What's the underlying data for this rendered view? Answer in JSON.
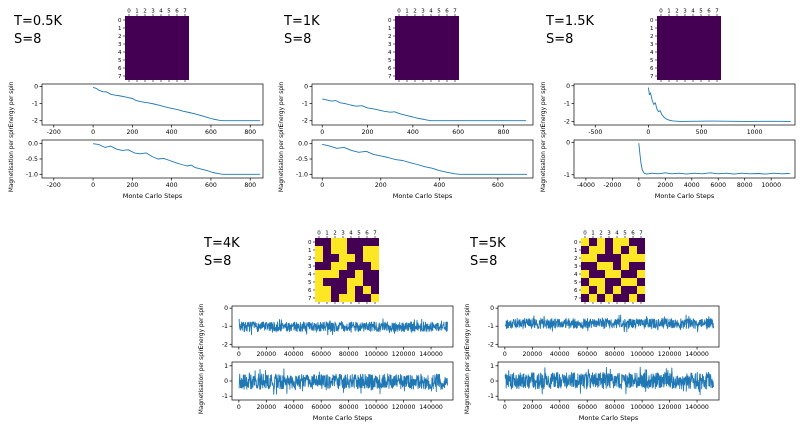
{
  "colors": {
    "line": "#1f77b4",
    "spin_down": "#440154",
    "spin_up": "#fde725",
    "axis": "#000000",
    "background": "#ffffff"
  },
  "panels": [
    {
      "temp_label": "T=0.5K",
      "s_label": "S=8"
    },
    {
      "temp_label": "T=1K",
      "s_label": "S=8"
    },
    {
      "temp_label": "T=1.5K",
      "s_label": "S=8"
    },
    {
      "temp_label": "T=4K",
      "s_label": "S=8"
    },
    {
      "temp_label": "T=5K",
      "s_label": "S=8"
    }
  ],
  "chart_data": [
    {
      "id": "t0.5_energy",
      "panel": "T=0.5K",
      "type": "line",
      "ylabel": "Energy per spin",
      "xlim": [
        -260,
        865
      ],
      "ylim": [
        -2.25,
        0.15
      ],
      "xticks": [
        -200,
        0,
        200,
        400,
        600,
        800
      ],
      "yticks": [
        0,
        -1,
        -2
      ],
      "points": [
        [
          0,
          -0.05
        ],
        [
          15,
          -0.1
        ],
        [
          30,
          -0.22
        ],
        [
          50,
          -0.3
        ],
        [
          70,
          -0.32
        ],
        [
          90,
          -0.45
        ],
        [
          110,
          -0.5
        ],
        [
          140,
          -0.55
        ],
        [
          170,
          -0.62
        ],
        [
          200,
          -0.7
        ],
        [
          220,
          -0.82
        ],
        [
          250,
          -0.9
        ],
        [
          280,
          -0.95
        ],
        [
          310,
          -1.02
        ],
        [
          340,
          -1.1
        ],
        [
          370,
          -1.2
        ],
        [
          400,
          -1.28
        ],
        [
          430,
          -1.35
        ],
        [
          460,
          -1.45
        ],
        [
          490,
          -1.52
        ],
        [
          520,
          -1.6
        ],
        [
          550,
          -1.7
        ],
        [
          580,
          -1.8
        ],
        [
          610,
          -1.9
        ],
        [
          640,
          -1.97
        ],
        [
          660,
          -2.0
        ],
        [
          850,
          -2.0
        ]
      ]
    },
    {
      "id": "t0.5_mag",
      "panel": "T=0.5K",
      "type": "line",
      "ylabel": "Magnetisation per spin",
      "xlabel": "Monte Carlo Steps",
      "xlim": [
        -260,
        865
      ],
      "ylim": [
        -1.12,
        0.12
      ],
      "xticks": [
        -200,
        0,
        200,
        400,
        600,
        800
      ],
      "yticks": [
        0,
        -0.5,
        -1
      ],
      "ytick_labels": [
        "0.0",
        "-0.5",
        "-1.0"
      ],
      "points": [
        [
          0,
          0.0
        ],
        [
          30,
          -0.03
        ],
        [
          60,
          -0.12
        ],
        [
          90,
          -0.08
        ],
        [
          120,
          -0.18
        ],
        [
          150,
          -0.22
        ],
        [
          180,
          -0.2
        ],
        [
          210,
          -0.3
        ],
        [
          240,
          -0.33
        ],
        [
          270,
          -0.3
        ],
        [
          300,
          -0.42
        ],
        [
          330,
          -0.5
        ],
        [
          360,
          -0.48
        ],
        [
          390,
          -0.55
        ],
        [
          420,
          -0.62
        ],
        [
          450,
          -0.68
        ],
        [
          480,
          -0.73
        ],
        [
          500,
          -0.7
        ],
        [
          520,
          -0.78
        ],
        [
          550,
          -0.83
        ],
        [
          580,
          -0.88
        ],
        [
          610,
          -0.94
        ],
        [
          640,
          -0.98
        ],
        [
          660,
          -1.0
        ],
        [
          850,
          -1.0
        ]
      ]
    },
    {
      "id": "t1_energy",
      "panel": "T=1K",
      "type": "line",
      "ylabel": "Energy per spin",
      "xlim": [
        -45,
        930
      ],
      "ylim": [
        -2.25,
        0.15
      ],
      "xticks": [
        0,
        200,
        400,
        600,
        800
      ],
      "yticks": [
        0,
        -1,
        -2
      ],
      "points": [
        [
          0,
          -0.72
        ],
        [
          20,
          -0.78
        ],
        [
          40,
          -0.85
        ],
        [
          60,
          -0.82
        ],
        [
          80,
          -0.95
        ],
        [
          100,
          -1.0
        ],
        [
          125,
          -1.08
        ],
        [
          150,
          -1.15
        ],
        [
          175,
          -1.12
        ],
        [
          200,
          -1.25
        ],
        [
          225,
          -1.3
        ],
        [
          250,
          -1.38
        ],
        [
          275,
          -1.45
        ],
        [
          300,
          -1.5
        ],
        [
          320,
          -1.48
        ],
        [
          340,
          -1.58
        ],
        [
          360,
          -1.65
        ],
        [
          380,
          -1.72
        ],
        [
          400,
          -1.78
        ],
        [
          420,
          -1.85
        ],
        [
          440,
          -1.9
        ],
        [
          460,
          -1.95
        ],
        [
          480,
          -2.0
        ],
        [
          900,
          -2.0
        ]
      ]
    },
    {
      "id": "t1_mag",
      "panel": "T=1K",
      "type": "line",
      "ylabel": "Magnetisation per spin",
      "xlabel": "Monte Carlo Steps",
      "xlim": [
        -35,
        720
      ],
      "ylim": [
        -1.12,
        0.12
      ],
      "xticks": [
        0,
        200,
        400,
        600
      ],
      "yticks": [
        0,
        -0.5,
        -1
      ],
      "ytick_labels": [
        "0.0",
        "-0.5",
        "-1.0"
      ],
      "points": [
        [
          0,
          -0.02
        ],
        [
          25,
          -0.08
        ],
        [
          50,
          -0.15
        ],
        [
          75,
          -0.12
        ],
        [
          100,
          -0.22
        ],
        [
          125,
          -0.28
        ],
        [
          150,
          -0.25
        ],
        [
          175,
          -0.35
        ],
        [
          200,
          -0.4
        ],
        [
          225,
          -0.45
        ],
        [
          250,
          -0.52
        ],
        [
          275,
          -0.55
        ],
        [
          300,
          -0.62
        ],
        [
          325,
          -0.68
        ],
        [
          350,
          -0.75
        ],
        [
          375,
          -0.8
        ],
        [
          400,
          -0.88
        ],
        [
          425,
          -0.93
        ],
        [
          450,
          -0.98
        ],
        [
          470,
          -1.0
        ],
        [
          700,
          -1.0
        ]
      ]
    },
    {
      "id": "t1.5_energy",
      "panel": "T=1.5K",
      "type": "line",
      "ylabel": "Energy per spin",
      "xlim": [
        -700,
        1380
      ],
      "ylim": [
        -2.2,
        0.1
      ],
      "xticks": [
        -500,
        0,
        500,
        1000
      ],
      "yticks": [
        0,
        -1,
        -2
      ],
      "points": [
        [
          0,
          -0.1
        ],
        [
          10,
          -0.5
        ],
        [
          20,
          -0.4
        ],
        [
          35,
          -0.8
        ],
        [
          50,
          -1.05
        ],
        [
          65,
          -0.95
        ],
        [
          80,
          -1.3
        ],
        [
          95,
          -1.45
        ],
        [
          110,
          -1.4
        ],
        [
          125,
          -1.6
        ],
        [
          145,
          -1.75
        ],
        [
          165,
          -1.85
        ],
        [
          190,
          -1.92
        ],
        [
          230,
          -1.97
        ],
        [
          300,
          -2.0
        ],
        [
          600,
          -1.98
        ],
        [
          900,
          -2.0
        ],
        [
          1200,
          -1.99
        ],
        [
          1340,
          -2.0
        ]
      ]
    },
    {
      "id": "t1.5_mag",
      "panel": "T=1.5K",
      "type": "line",
      "ylabel": "Magnetisation per spin",
      "xlabel": "Monte Carlo Steps",
      "xlim": [
        -4900,
        11800
      ],
      "ylim": [
        -1.1,
        0.08
      ],
      "xticks": [
        -4000,
        -2000,
        0,
        2000,
        4000,
        6000,
        8000,
        10000
      ],
      "yticks": [
        0,
        -1
      ],
      "points": [
        [
          0,
          -0.02
        ],
        [
          80,
          -0.35
        ],
        [
          160,
          -0.65
        ],
        [
          260,
          -0.85
        ],
        [
          400,
          -0.95
        ],
        [
          600,
          -0.98
        ],
        [
          1000,
          -0.95
        ],
        [
          1500,
          -0.97
        ],
        [
          2000,
          -0.94
        ],
        [
          2500,
          -0.97
        ],
        [
          3000,
          -0.95
        ],
        [
          3600,
          -0.98
        ],
        [
          4200,
          -0.95
        ],
        [
          4800,
          -0.97
        ],
        [
          5400,
          -0.94
        ],
        [
          6000,
          -0.97
        ],
        [
          6600,
          -0.95
        ],
        [
          7200,
          -0.98
        ],
        [
          7800,
          -0.95
        ],
        [
          8400,
          -0.97
        ],
        [
          9000,
          -0.96
        ],
        [
          9600,
          -0.98
        ],
        [
          10200,
          -0.95
        ],
        [
          10800,
          -0.97
        ],
        [
          11400,
          -0.96
        ]
      ]
    },
    {
      "id": "t4_energy",
      "panel": "T=4K",
      "type": "line",
      "ylabel": "Energy per spin",
      "xlim": [
        -5000,
        156000
      ],
      "ylim": [
        -2.15,
        0.12
      ],
      "xticks": [
        0,
        20000,
        40000,
        60000,
        80000,
        100000,
        120000,
        140000
      ],
      "yticks": [
        0,
        -1,
        -2
      ],
      "noise": {
        "x0": 200,
        "x1": 152000,
        "n": 760,
        "mean": -1.03,
        "amp": 0.27,
        "seed": 7
      }
    },
    {
      "id": "t4_mag",
      "panel": "T=4K",
      "type": "line",
      "ylabel": "Magnetisation per spin",
      "xlabel": "Monte Carlo Steps",
      "xlim": [
        -5000,
        156000
      ],
      "ylim": [
        -1.25,
        1.25
      ],
      "xticks": [
        0,
        20000,
        40000,
        60000,
        80000,
        100000,
        120000,
        140000
      ],
      "yticks": [
        1,
        0,
        -1
      ],
      "noise": {
        "x0": 200,
        "x1": 152000,
        "n": 760,
        "mean": -0.04,
        "amp": 0.5,
        "seed": 19
      }
    },
    {
      "id": "t5_energy",
      "panel": "T=5K",
      "type": "line",
      "ylabel": "Energy per spin",
      "xlim": [
        -5000,
        156000
      ],
      "ylim": [
        -2.15,
        0.12
      ],
      "xticks": [
        0,
        20000,
        40000,
        60000,
        80000,
        100000,
        120000,
        140000
      ],
      "yticks": [
        0,
        -1,
        -2
      ],
      "noise": {
        "x0": 200,
        "x1": 152000,
        "n": 760,
        "mean": -0.85,
        "amp": 0.28,
        "seed": 29
      }
    },
    {
      "id": "t5_mag",
      "panel": "T=5K",
      "type": "line",
      "ylabel": "Magnetisation per spin",
      "xlabel": "Monte Carlo Steps",
      "xlim": [
        -5000,
        156000
      ],
      "ylim": [
        -1.25,
        1.25
      ],
      "xticks": [
        0,
        20000,
        40000,
        60000,
        80000,
        100000,
        120000,
        140000
      ],
      "yticks": [
        1,
        0,
        -1
      ],
      "noise": {
        "x0": 200,
        "x1": 152000,
        "n": 760,
        "mean": 0.02,
        "amp": 0.55,
        "seed": 41
      }
    },
    {
      "id": "t0.5_lattice",
      "panel": "T=0.5K",
      "type": "heatmap",
      "x_tick_labels": [
        "0",
        "1",
        "2",
        "3",
        "4",
        "5",
        "6",
        "7"
      ],
      "y_tick_labels": [
        "0",
        "1",
        "2",
        "3",
        "4",
        "5",
        "6",
        "7"
      ],
      "grid": [
        [
          0,
          0,
          0,
          0,
          0,
          0,
          0,
          0
        ],
        [
          0,
          0,
          0,
          0,
          0,
          0,
          0,
          0
        ],
        [
          0,
          0,
          0,
          0,
          0,
          0,
          0,
          0
        ],
        [
          0,
          0,
          0,
          0,
          0,
          0,
          0,
          0
        ],
        [
          0,
          0,
          0,
          0,
          0,
          0,
          0,
          0
        ],
        [
          0,
          0,
          0,
          0,
          0,
          0,
          0,
          0
        ],
        [
          0,
          0,
          0,
          0,
          0,
          0,
          0,
          0
        ],
        [
          0,
          0,
          0,
          0,
          0,
          0,
          0,
          0
        ]
      ]
    },
    {
      "id": "t1_lattice",
      "panel": "T=1K",
      "type": "heatmap",
      "x_tick_labels": [
        "0",
        "1",
        "2",
        "3",
        "4",
        "5",
        "6",
        "7"
      ],
      "y_tick_labels": [
        "0",
        "1",
        "2",
        "3",
        "4",
        "5",
        "6",
        "7"
      ],
      "grid": [
        [
          0,
          0,
          0,
          0,
          0,
          0,
          0,
          0
        ],
        [
          0,
          0,
          0,
          0,
          0,
          0,
          0,
          0
        ],
        [
          0,
          0,
          0,
          0,
          0,
          0,
          0,
          0
        ],
        [
          0,
          0,
          0,
          0,
          0,
          0,
          0,
          0
        ],
        [
          0,
          0,
          0,
          0,
          0,
          0,
          0,
          0
        ],
        [
          0,
          0,
          0,
          0,
          0,
          0,
          0,
          0
        ],
        [
          0,
          0,
          0,
          0,
          0,
          0,
          0,
          0
        ],
        [
          0,
          0,
          0,
          0,
          0,
          0,
          0,
          0
        ]
      ]
    },
    {
      "id": "t1.5_lattice",
      "panel": "T=1.5K",
      "type": "heatmap",
      "x_tick_labels": [
        "0",
        "1",
        "2",
        "3",
        "4",
        "5",
        "6",
        "7"
      ],
      "y_tick_labels": [
        "0",
        "1",
        "2",
        "3",
        "4",
        "5",
        "6",
        "7"
      ],
      "grid": [
        [
          0,
          0,
          0,
          0,
          0,
          0,
          0,
          0
        ],
        [
          0,
          0,
          0,
          0,
          0,
          0,
          0,
          0
        ],
        [
          0,
          0,
          0,
          0,
          0,
          0,
          0,
          0
        ],
        [
          0,
          0,
          0,
          0,
          0,
          0,
          0,
          0
        ],
        [
          0,
          0,
          0,
          0,
          0,
          0,
          0,
          0
        ],
        [
          0,
          0,
          0,
          0,
          0,
          0,
          0,
          0
        ],
        [
          0,
          0,
          0,
          0,
          0,
          0,
          0,
          0
        ],
        [
          0,
          0,
          0,
          0,
          0,
          0,
          0,
          0
        ]
      ]
    },
    {
      "id": "t4_lattice",
      "panel": "T=4K",
      "type": "heatmap",
      "x_tick_labels": [
        "0",
        "1",
        "2",
        "3",
        "4",
        "5",
        "6",
        "7"
      ],
      "y_tick_labels": [
        "0",
        "1",
        "2",
        "3",
        "4",
        "5",
        "6",
        "7"
      ],
      "grid": [
        [
          0,
          0,
          1,
          1,
          0,
          0,
          0,
          0
        ],
        [
          1,
          0,
          1,
          1,
          0,
          0,
          1,
          1
        ],
        [
          1,
          0,
          0,
          1,
          1,
          0,
          1,
          1
        ],
        [
          0,
          0,
          1,
          1,
          0,
          0,
          0,
          1
        ],
        [
          1,
          1,
          1,
          0,
          0,
          1,
          0,
          0
        ],
        [
          1,
          0,
          0,
          0,
          1,
          1,
          0,
          0
        ],
        [
          1,
          1,
          0,
          0,
          1,
          0,
          1,
          0
        ],
        [
          1,
          1,
          0,
          1,
          1,
          0,
          0,
          1
        ]
      ]
    },
    {
      "id": "t5_lattice",
      "panel": "T=5K",
      "type": "heatmap",
      "x_tick_labels": [
        "0",
        "1",
        "2",
        "3",
        "4",
        "5",
        "6",
        "7"
      ],
      "y_tick_labels": [
        "0",
        "1",
        "2",
        "3",
        "4",
        "5",
        "6",
        "7"
      ],
      "grid": [
        [
          1,
          0,
          1,
          0,
          1,
          1,
          0,
          0
        ],
        [
          0,
          1,
          1,
          0,
          1,
          0,
          1,
          0
        ],
        [
          1,
          1,
          0,
          0,
          0,
          1,
          1,
          1
        ],
        [
          0,
          0,
          1,
          1,
          0,
          1,
          0,
          0
        ],
        [
          1,
          0,
          0,
          1,
          1,
          0,
          0,
          1
        ],
        [
          0,
          1,
          1,
          0,
          0,
          1,
          1,
          0
        ],
        [
          1,
          0,
          1,
          0,
          1,
          0,
          0,
          1
        ],
        [
          0,
          1,
          0,
          1,
          0,
          0,
          1,
          0
        ]
      ]
    }
  ]
}
